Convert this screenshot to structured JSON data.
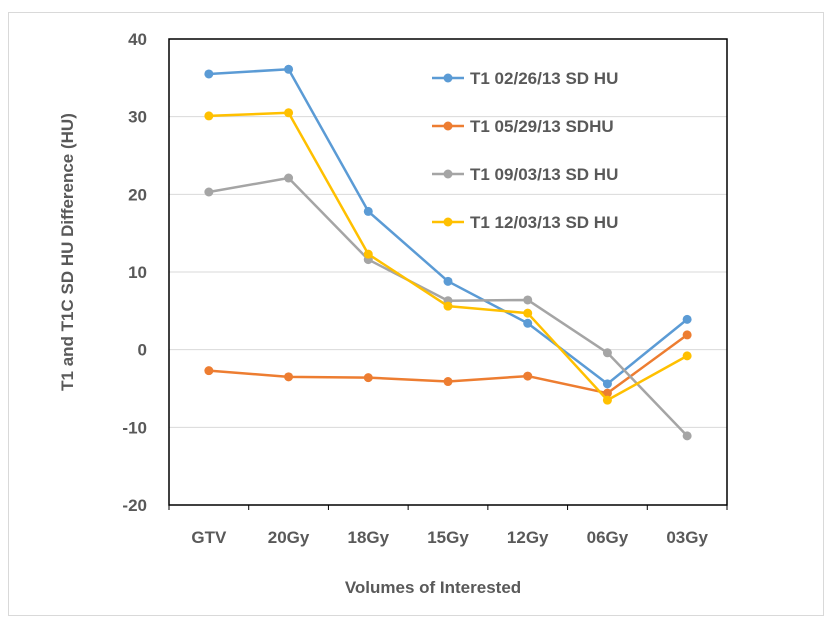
{
  "chart_data": {
    "type": "line",
    "title": "",
    "xlabel": "Volumes of Interested",
    "ylabel": "T1 and T1C SD HU Difference (HU)",
    "categories": [
      "GTV",
      "20Gy",
      "18Gy",
      "15Gy",
      "12Gy",
      "06Gy",
      "03Gy"
    ],
    "ylim": [
      -20,
      40
    ],
    "yticks": [
      "40",
      "30",
      "20",
      "10",
      "0",
      "-10",
      "-20"
    ],
    "ytick_values": [
      40,
      30,
      20,
      10,
      0,
      -10,
      -20
    ],
    "grid": true,
    "legend_position": "inside top-right",
    "series": [
      {
        "name": "T1 02/26/13 SD HU",
        "color": "#5B9BD5",
        "values": [
          35.5,
          36.1,
          17.8,
          8.8,
          3.4,
          -4.4,
          3.9
        ]
      },
      {
        "name": "T1 05/29/13 SDHU",
        "color": "#ED7D31",
        "values": [
          -2.7,
          -3.5,
          -3.6,
          -4.1,
          -3.4,
          -5.6,
          1.9
        ]
      },
      {
        "name": "T1 09/03/13 SD HU",
        "color": "#A5A5A5",
        "values": [
          20.3,
          22.1,
          11.6,
          6.3,
          6.4,
          -0.4,
          -11.1
        ]
      },
      {
        "name": "T1 12/03/13 SD HU",
        "color": "#FFC000",
        "values": [
          30.1,
          30.5,
          12.3,
          5.6,
          4.7,
          -6.5,
          -0.8
        ]
      }
    ]
  }
}
